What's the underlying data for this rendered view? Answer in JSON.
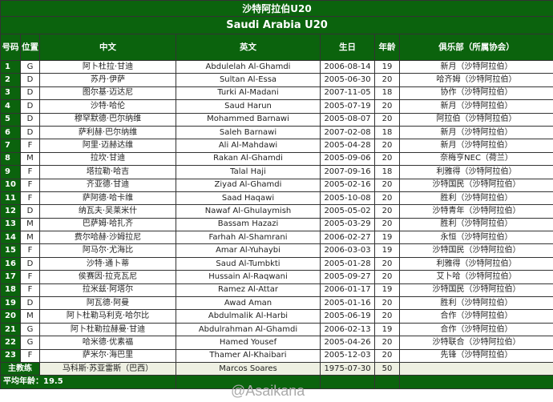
{
  "title_cn": "沙特阿拉伯U20",
  "title_en": "Saudi Arabia U20",
  "headers": {
    "num": "号码",
    "pos": "位置",
    "cn": "中文",
    "en": "英文",
    "dob": "生日",
    "age": "年龄",
    "club": "俱乐部（所属协会）"
  },
  "players": [
    {
      "num": "1",
      "pos": "G",
      "cn": "阿卜杜拉·甘迪",
      "en": "Abdulelah Al-Ghamdi",
      "dob": "2006-08-14",
      "age": "19",
      "club": "新月（沙特阿拉伯）"
    },
    {
      "num": "2",
      "pos": "D",
      "cn": "苏丹·伊萨",
      "en": "Sultan Al-Essa",
      "dob": "2005-06-30",
      "age": "20",
      "club": "哈齐姆（沙特阿拉伯）"
    },
    {
      "num": "3",
      "pos": "D",
      "cn": "图尔基·迈达尼",
      "en": "Turki Al-Madani",
      "dob": "2007-11-05",
      "age": "18",
      "club": "协作（沙特阿拉伯）"
    },
    {
      "num": "4",
      "pos": "D",
      "cn": "沙特·哈伦",
      "en": "Saud Harun",
      "dob": "2005-07-19",
      "age": "20",
      "club": "新月（沙特阿拉伯）"
    },
    {
      "num": "5",
      "pos": "D",
      "cn": "穆罕默德·巴尔纳维",
      "en": "Mohammed Barnawi",
      "dob": "2005-08-07",
      "age": "20",
      "club": "阿拉伯（沙特阿拉伯）"
    },
    {
      "num": "6",
      "pos": "D",
      "cn": "萨利赫·巴尔纳维",
      "en": "Saleh Barnawi",
      "dob": "2007-02-08",
      "age": "18",
      "club": "新月（沙特阿拉伯）"
    },
    {
      "num": "7",
      "pos": "F",
      "cn": "阿里·迈赫达维",
      "en": "Ali Al-Mahdawi",
      "dob": "2005-04-28",
      "age": "20",
      "club": "新月（沙特阿拉伯）"
    },
    {
      "num": "8",
      "pos": "M",
      "cn": "拉坎·甘迪",
      "en": "Rakan Al-Ghamdi",
      "dob": "2005-09-06",
      "age": "20",
      "club": "奈梅亨NEC（荷兰）"
    },
    {
      "num": "9",
      "pos": "F",
      "cn": "塔拉勒·哈吉",
      "en": "Talal Haji",
      "dob": "2007-09-16",
      "age": "18",
      "club": "利雅得（沙特阿拉伯）"
    },
    {
      "num": "10",
      "pos": "F",
      "cn": "齐亚德·甘迪",
      "en": "Ziyad Al-Ghamdi",
      "dob": "2005-02-16",
      "age": "20",
      "club": "沙特国民（沙特阿拉伯）"
    },
    {
      "num": "11",
      "pos": "F",
      "cn": "萨阿德·哈卡维",
      "en": "Saad Haqawi",
      "dob": "2005-10-08",
      "age": "20",
      "club": "胜利（沙特阿拉伯）"
    },
    {
      "num": "12",
      "pos": "D",
      "cn": "纳瓦夫·吴莱米什",
      "en": "Nawaf Al-Ghulaymish",
      "dob": "2005-05-02",
      "age": "20",
      "club": "沙特青年（沙特阿拉伯）"
    },
    {
      "num": "13",
      "pos": "M",
      "cn": "巴萨姆·哈扎齐",
      "en": "Bassam Hazazi",
      "dob": "2005-03-29",
      "age": "20",
      "club": "胜利（沙特阿拉伯）"
    },
    {
      "num": "14",
      "pos": "M",
      "cn": "费尔哈赫·沙姆拉尼",
      "en": "Farhah Al-Shamrani",
      "dob": "2006-02-27",
      "age": "19",
      "club": "永恒（沙特阿拉伯）"
    },
    {
      "num": "15",
      "pos": "F",
      "cn": "阿马尔·尤海比",
      "en": "Amar Al-Yuhaybi",
      "dob": "2006-03-03",
      "age": "19",
      "club": "沙特国民（沙特阿拉伯）"
    },
    {
      "num": "16",
      "pos": "D",
      "cn": "沙特·通卜蒂",
      "en": "Saud Al-Tumbkti",
      "dob": "2005-01-28",
      "age": "20",
      "club": "利雅得（沙特阿拉伯）"
    },
    {
      "num": "17",
      "pos": "F",
      "cn": "侯赛因·拉克瓦尼",
      "en": "Hussain Al-Raqwani",
      "dob": "2005-09-27",
      "age": "20",
      "club": "艾卜哈（沙特阿拉伯）"
    },
    {
      "num": "18",
      "pos": "F",
      "cn": "拉米兹·阿塔尔",
      "en": "Ramez Al-Attar",
      "dob": "2006-01-17",
      "age": "19",
      "club": "沙特国民（沙特阿拉伯）"
    },
    {
      "num": "19",
      "pos": "D",
      "cn": "阿瓦德·阿曼",
      "en": "Awad Aman",
      "dob": "2005-01-16",
      "age": "20",
      "club": "胜利（沙特阿拉伯）"
    },
    {
      "num": "20",
      "pos": "M",
      "cn": "阿卜杜勒马利克·哈尔比",
      "en": "Abdulmalik Al-Harbi",
      "dob": "2005-06-19",
      "age": "20",
      "club": "合作（沙特阿拉伯）"
    },
    {
      "num": "21",
      "pos": "G",
      "cn": "阿卜杜勒拉赫曼·甘迪",
      "en": "Abdulrahman Al-Ghamdi",
      "dob": "2006-02-13",
      "age": "19",
      "club": "合作（沙特阿拉伯）"
    },
    {
      "num": "22",
      "pos": "G",
      "cn": "哈米德·优素福",
      "en": "Hamed Yousef",
      "dob": "2005-04-26",
      "age": "20",
      "club": "沙特联合（沙特阿拉伯）"
    },
    {
      "num": "23",
      "pos": "F",
      "cn": "萨米尔·海巴里",
      "en": "Thamer Al-Khaibari",
      "dob": "2005-12-03",
      "age": "20",
      "club": "先锋（沙特阿拉伯）"
    }
  ],
  "coach": {
    "label": "主教练",
    "cn": "马科斯·苏亚雷斯（巴西）",
    "en": "Marcos Soares",
    "dob": "1975-07-30",
    "age": "50"
  },
  "average": "平均年龄：19.5",
  "watermark": "@Asaikana",
  "colors": {
    "header_green": "#0b630d",
    "coach_bg": "#eef0e2"
  }
}
